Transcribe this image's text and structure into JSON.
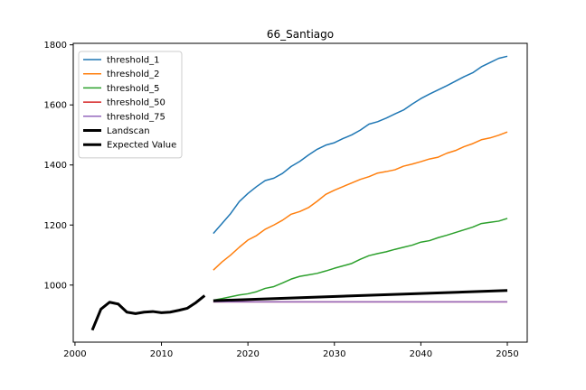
{
  "chart_data": {
    "type": "line",
    "title": "66_Santiago",
    "xlabel": "",
    "ylabel": "",
    "xlim": [
      1999.8,
      2052.3
    ],
    "ylim": [
      810,
      1805
    ],
    "x_ticks": [
      2000,
      2010,
      2020,
      2030,
      2040,
      2050
    ],
    "y_ticks": [
      1000,
      1200,
      1400,
      1600,
      1800
    ],
    "grid": false,
    "legend_position": "top-left",
    "series": [
      {
        "name": "threshold_1",
        "color": "#1f77b4",
        "x": [
          2016,
          2017,
          2018,
          2019,
          2020,
          2021,
          2022,
          2023,
          2024,
          2025,
          2026,
          2027,
          2028,
          2029,
          2030,
          2031,
          2032,
          2033,
          2034,
          2035,
          2036,
          2037,
          2038,
          2039,
          2040,
          2041,
          2042,
          2043,
          2044,
          2045,
          2046,
          2047,
          2048,
          2049,
          2050
        ],
        "y": [
          1172,
          1205,
          1238,
          1278,
          1305,
          1328,
          1348,
          1356,
          1372,
          1395,
          1412,
          1433,
          1452,
          1466,
          1474,
          1488,
          1500,
          1516,
          1536,
          1544,
          1556,
          1570,
          1583,
          1603,
          1621,
          1636,
          1650,
          1664,
          1679,
          1694,
          1707,
          1727,
          1741,
          1755,
          1762
        ]
      },
      {
        "name": "threshold_2",
        "color": "#ff7f0e",
        "x": [
          2016,
          2017,
          2018,
          2019,
          2020,
          2021,
          2022,
          2023,
          2024,
          2025,
          2026,
          2027,
          2028,
          2029,
          2030,
          2031,
          2032,
          2033,
          2034,
          2035,
          2036,
          2037,
          2038,
          2039,
          2040,
          2041,
          2042,
          2043,
          2044,
          2045,
          2046,
          2047,
          2048,
          2049,
          2050
        ],
        "y": [
          1050,
          1077,
          1100,
          1126,
          1150,
          1165,
          1186,
          1200,
          1216,
          1236,
          1245,
          1258,
          1279,
          1302,
          1316,
          1328,
          1340,
          1352,
          1361,
          1373,
          1378,
          1384,
          1396,
          1403,
          1411,
          1420,
          1426,
          1439,
          1448,
          1461,
          1471,
          1484,
          1490,
          1499,
          1510
        ]
      },
      {
        "name": "threshold_5",
        "color": "#2ca02c",
        "x": [
          2016,
          2017,
          2018,
          2019,
          2020,
          2021,
          2022,
          2023,
          2024,
          2025,
          2026,
          2027,
          2028,
          2029,
          2030,
          2031,
          2032,
          2033,
          2034,
          2035,
          2036,
          2037,
          2038,
          2039,
          2040,
          2041,
          2042,
          2043,
          2044,
          2045,
          2046,
          2047,
          2048,
          2049,
          2050
        ],
        "y": [
          950,
          955,
          961,
          967,
          971,
          978,
          989,
          995,
          1007,
          1020,
          1029,
          1034,
          1039,
          1047,
          1056,
          1064,
          1072,
          1086,
          1098,
          1105,
          1111,
          1119,
          1126,
          1133,
          1143,
          1148,
          1158,
          1166,
          1175,
          1184,
          1193,
          1205,
          1209,
          1213,
          1222
        ]
      },
      {
        "name": "threshold_50",
        "color": "#d62728",
        "x": [
          2016,
          2050
        ],
        "y": [
          944,
          944
        ]
      },
      {
        "name": "threshold_75",
        "color": "#9467bd",
        "x": [
          2016,
          2050
        ],
        "y": [
          944,
          944
        ]
      },
      {
        "name": "Landscan",
        "color": "#000000",
        "x": [
          2002,
          2003,
          2004,
          2005,
          2006,
          2007,
          2008,
          2009,
          2010,
          2011,
          2012,
          2013,
          2014,
          2015
        ],
        "y": [
          850,
          920,
          943,
          937,
          910,
          905,
          910,
          912,
          908,
          910,
          916,
          923,
          942,
          965
        ]
      },
      {
        "name": "Expected Value",
        "color": "#000000",
        "x": [
          2016,
          2050
        ],
        "y": [
          948,
          982
        ]
      }
    ]
  }
}
